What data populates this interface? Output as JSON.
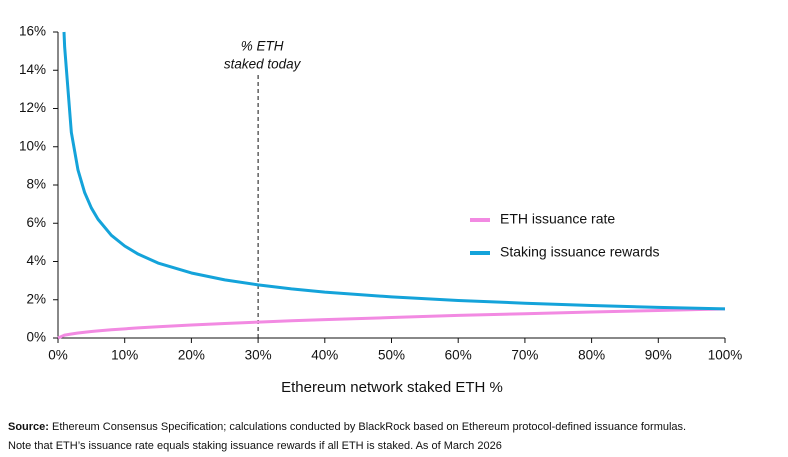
{
  "chart_data": {
    "type": "line",
    "x_label": "Ethereum network staked ETH %",
    "x": [
      0,
      0.9,
      1,
      2,
      3,
      4,
      5,
      6,
      8,
      10,
      12,
      15,
      20,
      25,
      30,
      35,
      40,
      50,
      60,
      70,
      80,
      90,
      100
    ],
    "series": [
      {
        "name": "ETH issuance rate",
        "color": "#f28ae2",
        "values": [
          0,
          0.14,
          0.15,
          0.21,
          0.26,
          0.3,
          0.34,
          0.37,
          0.43,
          0.48,
          0.53,
          0.59,
          0.68,
          0.76,
          0.83,
          0.9,
          0.96,
          1.07,
          1.18,
          1.27,
          1.36,
          1.44,
          1.52
        ]
      },
      {
        "name": "Staking issuance rewards",
        "color": "#14a3da",
        "values": [
          null,
          16.0,
          15.2,
          10.75,
          8.78,
          7.6,
          6.8,
          6.21,
          5.37,
          4.81,
          4.39,
          3.92,
          3.4,
          3.04,
          2.78,
          2.57,
          2.4,
          2.15,
          1.96,
          1.82,
          1.7,
          1.6,
          1.52
        ]
      }
    ],
    "xlim": [
      0,
      100
    ],
    "xticks": [
      {
        "value": 0,
        "label": "0%"
      },
      {
        "value": 10,
        "label": "10%"
      },
      {
        "value": 20,
        "label": "20%"
      },
      {
        "value": 30,
        "label": "30%"
      },
      {
        "value": 40,
        "label": "40%"
      },
      {
        "value": 50,
        "label": "50%"
      },
      {
        "value": 60,
        "label": "60%"
      },
      {
        "value": 70,
        "label": "70%"
      },
      {
        "value": 80,
        "label": "80%"
      },
      {
        "value": 90,
        "label": "90%"
      },
      {
        "value": 100,
        "label": "100%"
      }
    ],
    "ylim": [
      0,
      16
    ],
    "yticks": [
      {
        "value": 0,
        "label": "0%"
      },
      {
        "value": 2,
        "label": "2%"
      },
      {
        "value": 4,
        "label": "4%"
      },
      {
        "value": 6,
        "label": "6%"
      },
      {
        "value": 8,
        "label": "8%"
      },
      {
        "value": 10,
        "label": "10%"
      },
      {
        "value": 12,
        "label": "12%"
      },
      {
        "value": 14,
        "label": "14%"
      },
      {
        "value": 16,
        "label": "16%"
      }
    ],
    "annotation": {
      "x": 30,
      "lines": [
        "% ETH",
        "staked today"
      ]
    },
    "source_label": "Source:",
    "source_text": "Ethereum Consensus Specification; calculations conducted by BlackRock based on Ethereum protocol-defined issuance formulas.",
    "note": "Note that ETH’s issuance rate equals staking issuance rewards if all ETH is staked. As of March 2026"
  }
}
